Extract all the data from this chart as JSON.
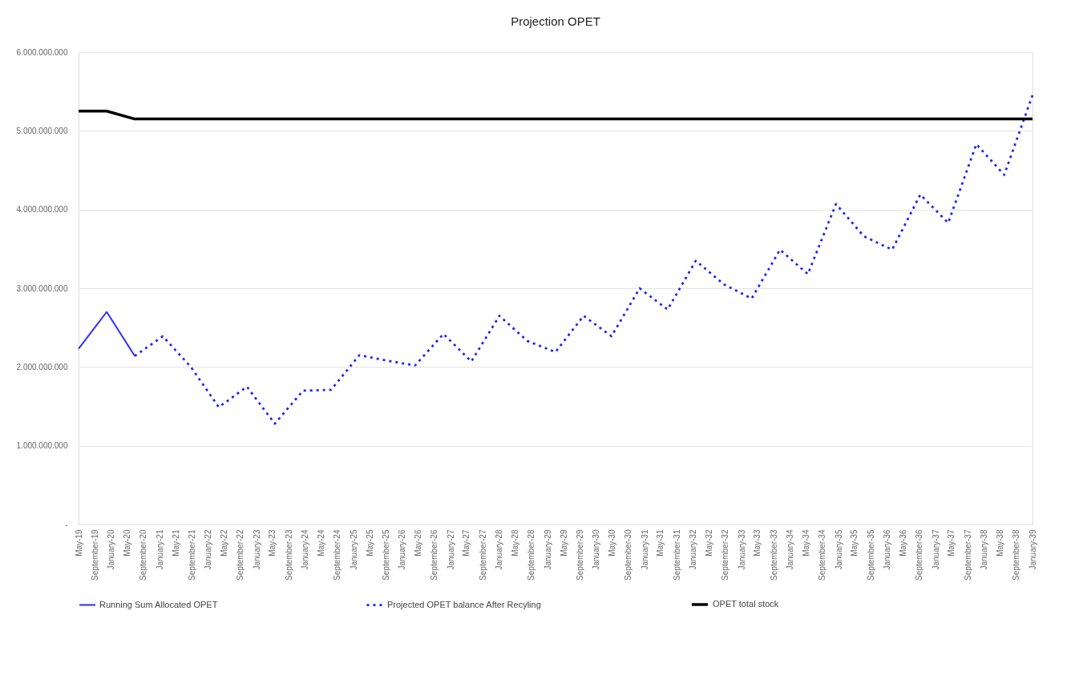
{
  "chart_data": {
    "type": "line",
    "title": "Projection OPET",
    "x": [
      "2019-05-01",
      "2019-11-29",
      "2020-06-27",
      "2021-01-25",
      "2021-08-24",
      "2022-03-22",
      "2022-10-20",
      "2023-05-18",
      "2023-12-17",
      "2024-07-15",
      "2025-02-13",
      "2025-09-11",
      "2026-04-09",
      "2026-11-08",
      "2027-06-06",
      "2028-01-04",
      "2028-08-02",
      "2029-03-01",
      "2029-09-29",
      "2030-04-27",
      "2030-11-25",
      "2031-06-24",
      "2032-01-22",
      "2032-08-20",
      "2033-03-18",
      "2033-10-17",
      "2034-05-15",
      "2034-12-13",
      "2035-07-11",
      "2036-02-09",
      "2036-09-08",
      "2037-04-06",
      "2037-11-04",
      "2038-06-02",
      "2039-01-01"
    ],
    "series": [
      {
        "name": "Running Sum Allocated OPET",
        "color": "#2b2bff",
        "line_style": "solid",
        "values": [
          2230000000,
          2700000000,
          2140000000,
          null,
          null,
          null,
          null,
          null,
          null,
          null,
          null,
          null,
          null,
          null,
          null,
          null,
          null,
          null,
          null,
          null,
          null,
          null,
          null,
          null,
          null,
          null,
          null,
          null,
          null,
          null,
          null,
          null,
          null,
          null,
          null
        ]
      },
      {
        "name": "Projected OPET balance After Recyling",
        "color": "#2020ff",
        "line_style": "dotted",
        "values": [
          null,
          null,
          2140000000,
          2390000000,
          2000000000,
          1490000000,
          1750000000,
          1280000000,
          1700000000,
          1710000000,
          2150000000,
          2080000000,
          2020000000,
          2420000000,
          2070000000,
          2650000000,
          2330000000,
          2190000000,
          2650000000,
          2390000000,
          3000000000,
          2730000000,
          3350000000,
          3050000000,
          2870000000,
          3490000000,
          3180000000,
          4070000000,
          3660000000,
          3490000000,
          4190000000,
          3830000000,
          4830000000,
          4440000000,
          5450000000
        ]
      },
      {
        "name": "OPET total stock",
        "color": "#000000",
        "line_style": "solid",
        "values": [
          5250000000,
          5250000000,
          5150000000,
          5150000000,
          5150000000,
          5150000000,
          5150000000,
          5150000000,
          5150000000,
          5150000000,
          5150000000,
          5150000000,
          5150000000,
          5150000000,
          5150000000,
          5150000000,
          5150000000,
          5150000000,
          5150000000,
          5150000000,
          5150000000,
          5150000000,
          5150000000,
          5150000000,
          5150000000,
          5150000000,
          5150000000,
          5150000000,
          5150000000,
          5150000000,
          5150000000,
          5150000000,
          5150000000,
          5150000000,
          5150000000
        ]
      }
    ],
    "xlim": [
      "2019-05-01",
      "2039-01-01"
    ],
    "xticks": [
      {
        "value": "2019-05",
        "label": "May-19"
      },
      {
        "value": "2019-09",
        "label": "September-19"
      },
      {
        "value": "2020-01",
        "label": "January-20"
      },
      {
        "value": "2020-05",
        "label": "May-20"
      },
      {
        "value": "2020-09",
        "label": "September-20"
      },
      {
        "value": "2021-01",
        "label": "January-21"
      },
      {
        "value": "2021-05",
        "label": "May-21"
      },
      {
        "value": "2021-09",
        "label": "September-21"
      },
      {
        "value": "2022-01",
        "label": "January-22"
      },
      {
        "value": "2022-05",
        "label": "May-22"
      },
      {
        "value": "2022-09",
        "label": "September-22"
      },
      {
        "value": "2023-01",
        "label": "January-23"
      },
      {
        "value": "2023-05",
        "label": "May-23"
      },
      {
        "value": "2023-09",
        "label": "September-23"
      },
      {
        "value": "2024-01",
        "label": "January-24"
      },
      {
        "value": "2024-05",
        "label": "May-24"
      },
      {
        "value": "2024-09",
        "label": "September-24"
      },
      {
        "value": "2025-01",
        "label": "January-25"
      },
      {
        "value": "2025-05",
        "label": "May-25"
      },
      {
        "value": "2025-09",
        "label": "September-25"
      },
      {
        "value": "2026-01",
        "label": "January-26"
      },
      {
        "value": "2026-05",
        "label": "May-26"
      },
      {
        "value": "2026-09",
        "label": "September-26"
      },
      {
        "value": "2027-01",
        "label": "January-27"
      },
      {
        "value": "2027-05",
        "label": "May-27"
      },
      {
        "value": "2027-09",
        "label": "September-27"
      },
      {
        "value": "2028-01",
        "label": "January-28"
      },
      {
        "value": "2028-05",
        "label": "May-28"
      },
      {
        "value": "2028-09",
        "label": "September-28"
      },
      {
        "value": "2029-01",
        "label": "January-29"
      },
      {
        "value": "2029-05",
        "label": "May-29"
      },
      {
        "value": "2029-09",
        "label": "September-29"
      },
      {
        "value": "2030-01",
        "label": "January-30"
      },
      {
        "value": "2030-05",
        "label": "May-30"
      },
      {
        "value": "2030-09",
        "label": "September-30"
      },
      {
        "value": "2031-01",
        "label": "January-31"
      },
      {
        "value": "2031-05",
        "label": "May-31"
      },
      {
        "value": "2031-09",
        "label": "September-31"
      },
      {
        "value": "2032-01",
        "label": "January-32"
      },
      {
        "value": "2032-05",
        "label": "May-32"
      },
      {
        "value": "2032-09",
        "label": "September-32"
      },
      {
        "value": "2033-01",
        "label": "January-33"
      },
      {
        "value": "2033-05",
        "label": "May-33"
      },
      {
        "value": "2033-09",
        "label": "September-33"
      },
      {
        "value": "2034-01",
        "label": "January-34"
      },
      {
        "value": "2034-05",
        "label": "May-34"
      },
      {
        "value": "2034-09",
        "label": "September-34"
      },
      {
        "value": "2035-01",
        "label": "January-35"
      },
      {
        "value": "2035-05",
        "label": "May-35"
      },
      {
        "value": "2035-09",
        "label": "September-35"
      },
      {
        "value": "2036-01",
        "label": "January-36"
      },
      {
        "value": "2036-05",
        "label": "May-36"
      },
      {
        "value": "2036-09",
        "label": "September-36"
      },
      {
        "value": "2037-01",
        "label": "January-37"
      },
      {
        "value": "2037-05",
        "label": "May-37"
      },
      {
        "value": "2037-09",
        "label": "September-37"
      },
      {
        "value": "2038-01",
        "label": "January-38"
      },
      {
        "value": "2038-05",
        "label": "May-38"
      },
      {
        "value": "2038-09",
        "label": "September-38"
      },
      {
        "value": "2039-01",
        "label": "January-39"
      }
    ],
    "ylim": [
      0,
      6000000000
    ],
    "yticks": [
      {
        "value": 0,
        "label": "-"
      },
      {
        "value": 1000000000,
        "label": "1.000.000.000"
      },
      {
        "value": 2000000000,
        "label": "2.000.000.000"
      },
      {
        "value": 3000000000,
        "label": "3.000.000.000"
      },
      {
        "value": 4000000000,
        "label": "4.000.000.000"
      },
      {
        "value": 5000000000,
        "label": "5.000.000.000"
      },
      {
        "value": 6000000000,
        "label": "6.000.000.000"
      }
    ],
    "grid": "y",
    "legend": "bottom",
    "marker": "none"
  }
}
